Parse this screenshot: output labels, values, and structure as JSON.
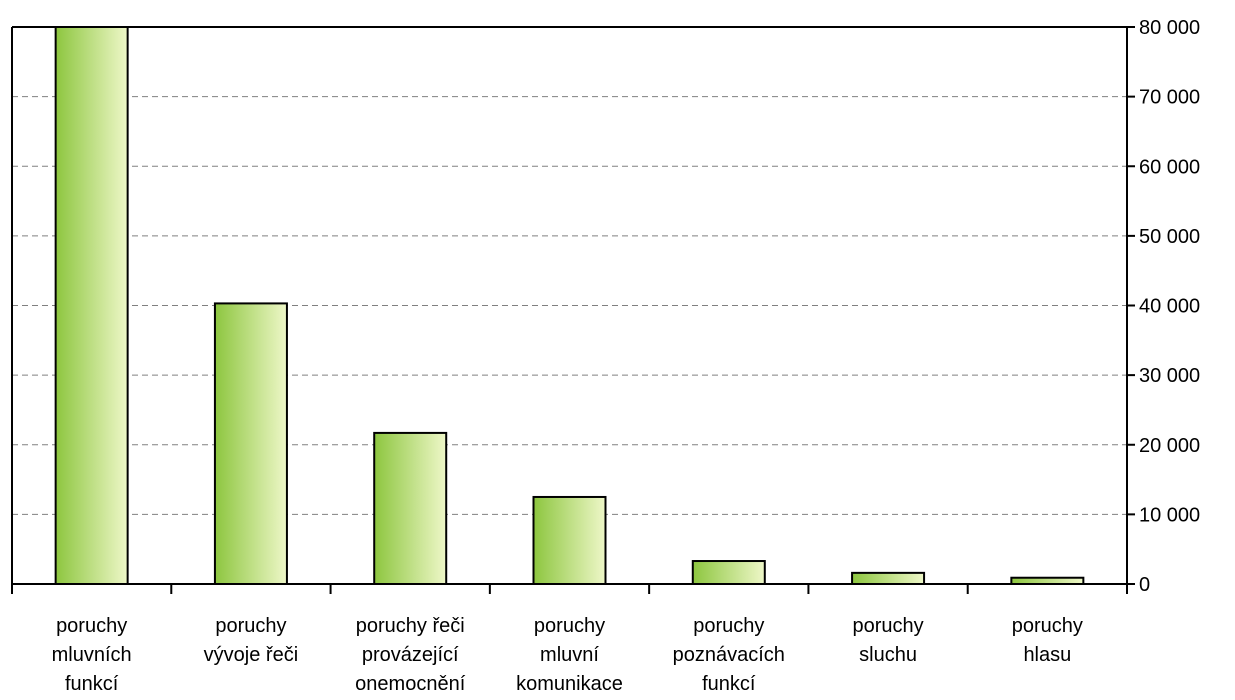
{
  "chart_data": {
    "type": "bar",
    "title": "",
    "xlabel": "",
    "ylabel": "",
    "ylim": [
      0,
      80000
    ],
    "yticks": [
      0,
      10000,
      20000,
      30000,
      40000,
      50000,
      60000,
      70000,
      80000
    ],
    "ytick_labels": [
      "0",
      "10 000",
      "20 000",
      "30 000",
      "40 000",
      "50 000",
      "60 000",
      "70 000",
      "80 000"
    ],
    "y_axis_side": "right",
    "grid": "horizontal dashed",
    "legend": "none",
    "categories": [
      [
        "poruchy",
        "mluvních",
        "funkcí"
      ],
      [
        "poruchy",
        "vývoje řeči"
      ],
      [
        "poruchy řeči",
        "provázející",
        "onemocnění"
      ],
      [
        "poruchy",
        "mluvní",
        "komunikace"
      ],
      [
        "poruchy",
        "poznávacích",
        "funkcí"
      ],
      [
        "poruchy",
        "sluchu"
      ],
      [
        "poruchy",
        "hlasu"
      ]
    ],
    "values": [
      80000,
      40300,
      21700,
      12500,
      3300,
      1600,
      900
    ],
    "colors": {
      "bar_dark": "#8dc63f",
      "bar_light": "#eef7c8",
      "bar_edge": "#000000",
      "grid": "#808080"
    }
  }
}
